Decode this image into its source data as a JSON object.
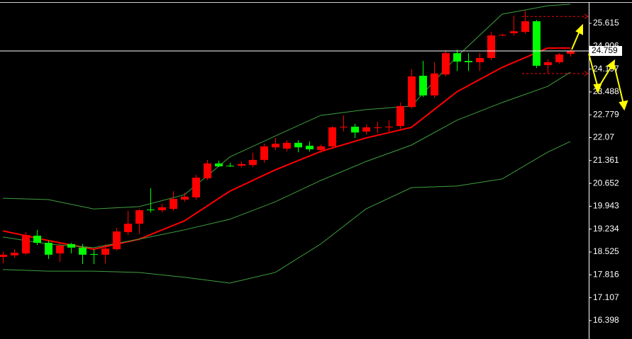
{
  "chart_data": {
    "type": "candlestick",
    "open": [
      18.37,
      18.42,
      18.48,
      19.03,
      18.81,
      18.48,
      18.77,
      18.66,
      18.46,
      18.44,
      18.61,
      19.14,
      19.4,
      19.84,
      19.82,
      19.86,
      20.15,
      20.22,
      20.81,
      21.27,
      21.2,
      21.2,
      21.22,
      21.38,
      21.77,
      21.73,
      21.91,
      21.82,
      21.69,
      21.8,
      22.39,
      22.41,
      22.26,
      22.37,
      22.39,
      22.43,
      23.02,
      23.99,
      23.38,
      24.03,
      24.69,
      24.45,
      24.41,
      24.54,
      25.24,
      25.31,
      25.35,
      25.68,
      24.32,
      24.41,
      24.67
    ],
    "high": [
      18.53,
      18.61,
      19.14,
      19.21,
      18.88,
      18.83,
      18.81,
      18.77,
      18.61,
      18.77,
      19.27,
      19.8,
      19.86,
      20.5,
      20.02,
      20.41,
      20.37,
      20.92,
      21.38,
      21.36,
      21.29,
      21.33,
      21.6,
      21.88,
      22.06,
      21.99,
      21.99,
      21.95,
      21.86,
      22.43,
      22.76,
      22.5,
      22.48,
      22.56,
      22.61,
      23.16,
      24.19,
      24.45,
      24.41,
      24.78,
      24.8,
      24.69,
      24.69,
      25.35,
      25.29,
      25.86,
      26.01,
      25.72,
      24.5,
      24.69,
      24.8
    ],
    "low": [
      18.17,
      18.35,
      18.44,
      18.74,
      18.31,
      18.22,
      18.48,
      18.15,
      18.15,
      18.17,
      18.57,
      19.05,
      19.1,
      19.75,
      19.75,
      19.8,
      20.08,
      20.15,
      20.76,
      21.16,
      21.16,
      21.14,
      21.16,
      21.29,
      21.69,
      21.64,
      21.62,
      21.64,
      21.6,
      21.73,
      22.26,
      22.06,
      22.17,
      22.21,
      22.26,
      22.34,
      22.98,
      23.33,
      23.31,
      23.97,
      24.14,
      24.14,
      24.14,
      24.47,
      25.22,
      25.24,
      25.29,
      24.23,
      24.06,
      24.36,
      24.58
    ],
    "close": [
      18.44,
      18.5,
      19.05,
      18.81,
      18.44,
      18.72,
      18.66,
      18.44,
      18.44,
      18.63,
      19.16,
      19.4,
      19.82,
      19.82,
      19.91,
      20.17,
      20.24,
      20.83,
      21.27,
      21.18,
      21.18,
      21.25,
      21.38,
      21.8,
      21.88,
      21.91,
      21.77,
      21.71,
      21.8,
      22.39,
      22.41,
      22.23,
      22.39,
      22.39,
      22.41,
      23.05,
      23.97,
      23.38,
      24.06,
      24.69,
      24.43,
      24.41,
      24.54,
      25.24,
      25.26,
      25.37,
      25.68,
      24.3,
      24.41,
      24.65,
      24.76
    ],
    "up_color": "#ff0000",
    "down_color": "#00ff00",
    "lines": [
      {
        "color": "#3f9f3f",
        "x": [
          0,
          4,
          8,
          12,
          16,
          20,
          24,
          28,
          32,
          36,
          40,
          44,
          48,
          50
        ],
        "values": [
          20.19,
          20.15,
          19.86,
          19.93,
          20.3,
          21.47,
          22.12,
          22.76,
          22.94,
          23.05,
          24.58,
          25.9,
          26.16,
          26.21
        ]
      },
      {
        "color": "#ff0000",
        "x": [
          0,
          4,
          8,
          12,
          16,
          20,
          24,
          28,
          32,
          36,
          40,
          44,
          48,
          50
        ],
        "values": [
          19.18,
          18.88,
          18.61,
          18.92,
          19.49,
          20.41,
          21.07,
          21.64,
          22.06,
          22.39,
          23.49,
          24.25,
          24.85,
          24.85
        ]
      },
      {
        "color": "#3f9f3f",
        "x": [
          0,
          4,
          8,
          12,
          16,
          20,
          24,
          28,
          32,
          36,
          40,
          44,
          48,
          50
        ],
        "values": [
          18.99,
          18.77,
          18.66,
          18.92,
          19.21,
          19.54,
          20.08,
          20.74,
          21.33,
          21.84,
          22.61,
          23.16,
          23.66,
          24.1
        ]
      },
      {
        "color": "#3f9f3f",
        "x": [
          0,
          4,
          8,
          12,
          16,
          20,
          24,
          28,
          32,
          36,
          40,
          44,
          48,
          50
        ],
        "values": [
          17.98,
          17.93,
          17.93,
          17.89,
          17.74,
          17.56,
          17.89,
          18.77,
          19.86,
          20.52,
          20.57,
          20.79,
          21.62,
          21.95
        ]
      }
    ],
    "levels": [
      25.83,
      24.06
    ],
    "level_color": "#ff0000",
    "last_price": 24.759,
    "ylim": [
      15.826,
      26.339
    ],
    "yticks": [
      25.615,
      24.906,
      24.197,
      23.488,
      22.779,
      22.07,
      21.361,
      20.652,
      19.943,
      19.234,
      18.525,
      17.816,
      17.107,
      16.398
    ]
  }
}
